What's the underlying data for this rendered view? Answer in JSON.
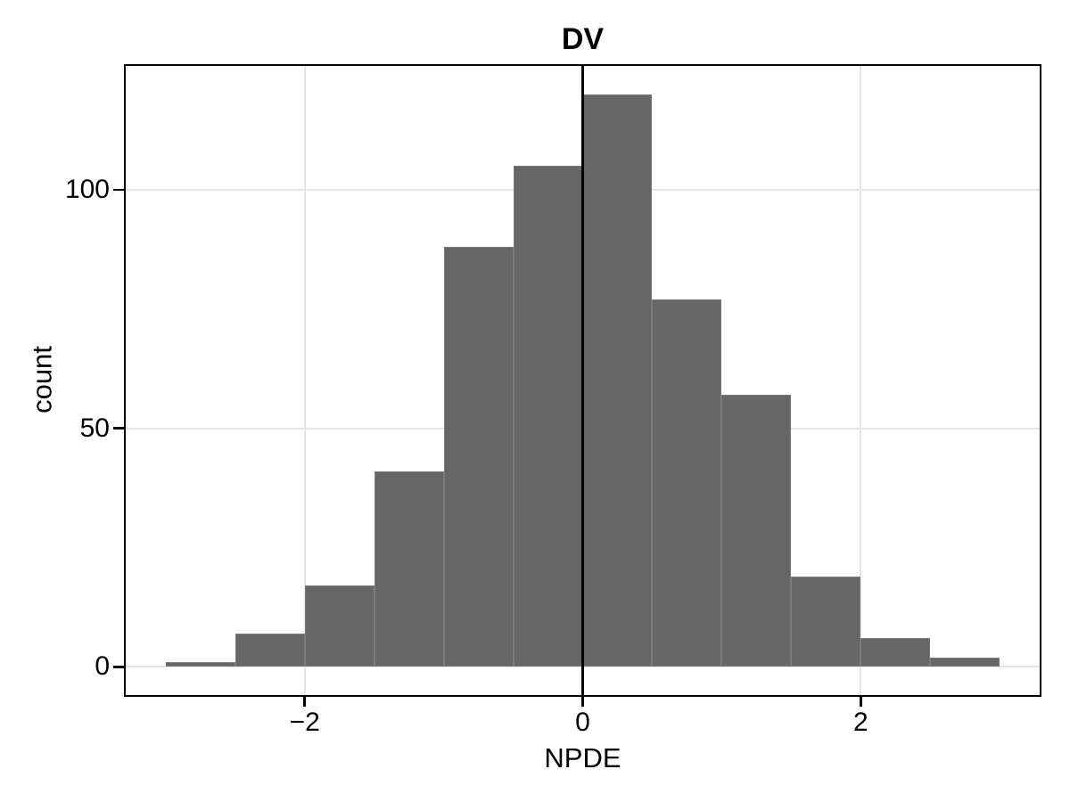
{
  "chart_data": {
    "type": "bar",
    "kind": "histogram",
    "title": "DV",
    "xlabel": "NPDE",
    "ylabel": "count",
    "bin_width": 0.5,
    "bin_edges": [
      -3.0,
      -2.5,
      -2.0,
      -1.5,
      -1.0,
      -0.5,
      0.0,
      0.5,
      1.0,
      1.5,
      2.0,
      2.5,
      3.0
    ],
    "counts": [
      1,
      7,
      17,
      41,
      88,
      105,
      120,
      77,
      57,
      19,
      6,
      2
    ],
    "xlim": [
      -3.3,
      3.3
    ],
    "ylim": [
      -6.3,
      126.3
    ],
    "x_ticks": [
      {
        "v": -2,
        "label": "−2"
      },
      {
        "v": 0,
        "label": "0"
      },
      {
        "v": 2,
        "label": "2"
      }
    ],
    "y_ticks": [
      {
        "v": 0,
        "label": "0"
      },
      {
        "v": 50,
        "label": "50"
      },
      {
        "v": 100,
        "label": "100"
      }
    ],
    "reference_line_x": 0,
    "grid": true,
    "legend": "none",
    "colors": {
      "bar_fill": "#666666",
      "bar_edge": "#7b7b7b",
      "gridline": "#e6e6e6",
      "panel_border": "#000000",
      "reference_line": "#000000",
      "text": "#000000",
      "background": "#ffffff"
    }
  }
}
